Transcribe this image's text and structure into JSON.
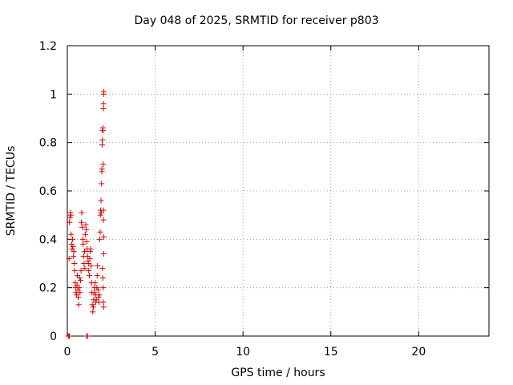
{
  "chart_data": {
    "type": "scatter",
    "title": "Day 048 of 2025, SRMTID for receiver p803",
    "xlabel": "GPS time / hours",
    "ylabel": "SRMTID / TECUs",
    "xlim": [
      0,
      24
    ],
    "ylim": [
      0,
      1.2
    ],
    "xticks": [
      0,
      5,
      10,
      15,
      20
    ],
    "yticks": [
      0,
      0.2,
      0.4,
      0.6,
      0.8,
      1,
      1.2
    ],
    "ytick_labels": [
      "0",
      "0.2",
      "0.4",
      "0.6",
      "0.8",
      "1",
      "1.2"
    ],
    "grid": true,
    "marker": "+",
    "marker_color": "#dd0000",
    "series": [
      {
        "name": "p803",
        "points": [
          [
            0.05,
            0.0
          ],
          [
            0.1,
            0.0
          ],
          [
            0.12,
            0.0
          ],
          [
            1.1,
            0.0
          ],
          [
            1.15,
            0.0
          ],
          [
            0.1,
            0.32
          ],
          [
            0.12,
            0.47
          ],
          [
            0.15,
            0.49
          ],
          [
            0.18,
            0.51
          ],
          [
            0.2,
            0.5
          ],
          [
            0.22,
            0.42
          ],
          [
            0.25,
            0.38
          ],
          [
            0.27,
            0.36
          ],
          [
            0.3,
            0.4
          ],
          [
            0.32,
            0.37
          ],
          [
            0.35,
            0.33
          ],
          [
            0.37,
            0.35
          ],
          [
            0.4,
            0.3
          ],
          [
            0.42,
            0.27
          ],
          [
            0.45,
            0.22
          ],
          [
            0.47,
            0.2
          ],
          [
            0.5,
            0.18
          ],
          [
            0.52,
            0.17
          ],
          [
            0.55,
            0.21
          ],
          [
            0.57,
            0.25
          ],
          [
            0.6,
            0.19
          ],
          [
            0.62,
            0.16
          ],
          [
            0.65,
            0.13
          ],
          [
            0.68,
            0.2
          ],
          [
            0.7,
            0.24
          ],
          [
            0.72,
            0.18
          ],
          [
            0.75,
            0.23
          ],
          [
            0.78,
            0.27
          ],
          [
            0.8,
            0.47
          ],
          [
            0.82,
            0.51
          ],
          [
            0.85,
            0.45
          ],
          [
            0.88,
            0.4
          ],
          [
            0.9,
            0.38
          ],
          [
            0.92,
            0.33
          ],
          [
            0.95,
            0.3
          ],
          [
            0.98,
            0.35
          ],
          [
            1.0,
            0.28
          ],
          [
            1.02,
            0.42
          ],
          [
            1.05,
            0.46
          ],
          [
            1.08,
            0.44
          ],
          [
            1.1,
            0.39
          ],
          [
            1.12,
            0.36
          ],
          [
            1.15,
            0.33
          ],
          [
            1.18,
            0.31
          ],
          [
            1.2,
            0.3
          ],
          [
            1.22,
            0.27
          ],
          [
            1.25,
            0.25
          ],
          [
            1.28,
            0.32
          ],
          [
            1.3,
            0.35
          ],
          [
            1.32,
            0.36
          ],
          [
            1.35,
            0.29
          ],
          [
            1.38,
            0.22
          ],
          [
            1.4,
            0.18
          ],
          [
            1.42,
            0.13
          ],
          [
            1.45,
            0.1
          ],
          [
            1.48,
            0.12
          ],
          [
            1.5,
            0.15
          ],
          [
            1.52,
            0.18
          ],
          [
            1.55,
            0.2
          ],
          [
            1.58,
            0.22
          ],
          [
            1.6,
            0.17
          ],
          [
            1.62,
            0.14
          ],
          [
            1.65,
            0.15
          ],
          [
            1.68,
            0.2
          ],
          [
            1.7,
            0.25
          ],
          [
            1.72,
            0.29
          ],
          [
            1.75,
            0.19
          ],
          [
            1.78,
            0.16
          ],
          [
            1.8,
            0.14
          ],
          [
            1.82,
            0.17
          ],
          [
            1.85,
            0.4
          ],
          [
            1.87,
            0.43
          ],
          [
            1.88,
            0.5
          ],
          [
            1.9,
            0.52
          ],
          [
            1.92,
            0.56
          ],
          [
            1.93,
            0.51
          ],
          [
            1.95,
            0.63
          ],
          [
            1.96,
            0.68
          ],
          [
            1.97,
            0.69
          ],
          [
            1.98,
            0.79
          ],
          [
            2.0,
            0.81
          ],
          [
            2.0,
            0.85
          ],
          [
            2.02,
            0.86
          ],
          [
            2.03,
            0.85
          ],
          [
            2.04,
            0.71
          ],
          [
            2.05,
            0.94
          ],
          [
            2.06,
            0.96
          ],
          [
            2.07,
            1.0
          ],
          [
            2.08,
            1.01
          ],
          [
            2.05,
            0.52
          ],
          [
            2.06,
            0.48
          ],
          [
            2.08,
            0.41
          ],
          [
            2.0,
            0.28
          ],
          [
            2.02,
            0.24
          ],
          [
            2.04,
            0.2
          ],
          [
            2.05,
            0.14
          ],
          [
            2.06,
            0.12
          ],
          [
            2.07,
            0.34
          ]
        ]
      }
    ]
  }
}
